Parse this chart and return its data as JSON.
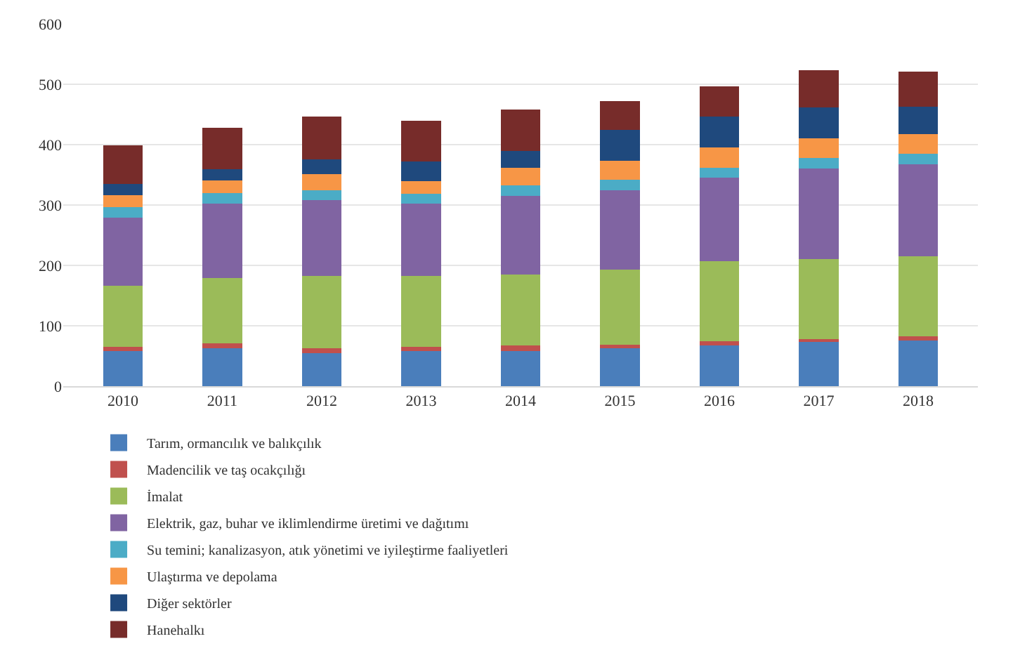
{
  "chart_data": {
    "type": "bar",
    "stacked": true,
    "categories": [
      "2010",
      "2011",
      "2012",
      "2013",
      "2014",
      "2015",
      "2016",
      "2017",
      "2018"
    ],
    "series": [
      {
        "name": "Tarım, ormancılık ve balıkçılık",
        "color": "#4a7ebb",
        "values": [
          58,
          63,
          55,
          58,
          58,
          65,
          68,
          73,
          76
        ]
      },
      {
        "name": "Madencilik ve taş ocakçılığı",
        "color": "#c0504d",
        "values": [
          7,
          8,
          8,
          7,
          9,
          4,
          7,
          5,
          6
        ]
      },
      {
        "name": "İmalat",
        "color": "#9bbb59",
        "values": [
          101,
          108,
          120,
          118,
          118,
          124,
          132,
          133,
          133
        ]
      },
      {
        "name": "Elektrik, gaz, buhar ve iklimlendirme üretimi ve dağıtımı",
        "color": "#8064a2",
        "values": [
          113,
          123,
          125,
          119,
          130,
          132,
          138,
          150,
          153
        ]
      },
      {
        "name": "Su temini; kanalizasyon, atık yönetimi ve iyileştirme faaliyetleri",
        "color": "#4bacc6",
        "values": [
          17,
          18,
          17,
          17,
          17,
          17,
          17,
          17,
          17
        ]
      },
      {
        "name": "Ulaştırma ve depolama",
        "color": "#f79646",
        "values": [
          20,
          21,
          26,
          21,
          30,
          31,
          33,
          33,
          33
        ]
      },
      {
        "name": "Diğer sektörler",
        "color": "#1f497d",
        "values": [
          19,
          18,
          25,
          32,
          28,
          52,
          52,
          51,
          45
        ]
      },
      {
        "name": "Hanehalkı",
        "color": "#772c2a",
        "values": [
          64,
          69,
          71,
          67,
          68,
          47,
          50,
          61,
          58
        ]
      }
    ],
    "ylim": [
      0,
      600
    ],
    "yticks": [
      0,
      100,
      200,
      300,
      400,
      500,
      600
    ],
    "grid": "y",
    "legend": "bottom"
  }
}
